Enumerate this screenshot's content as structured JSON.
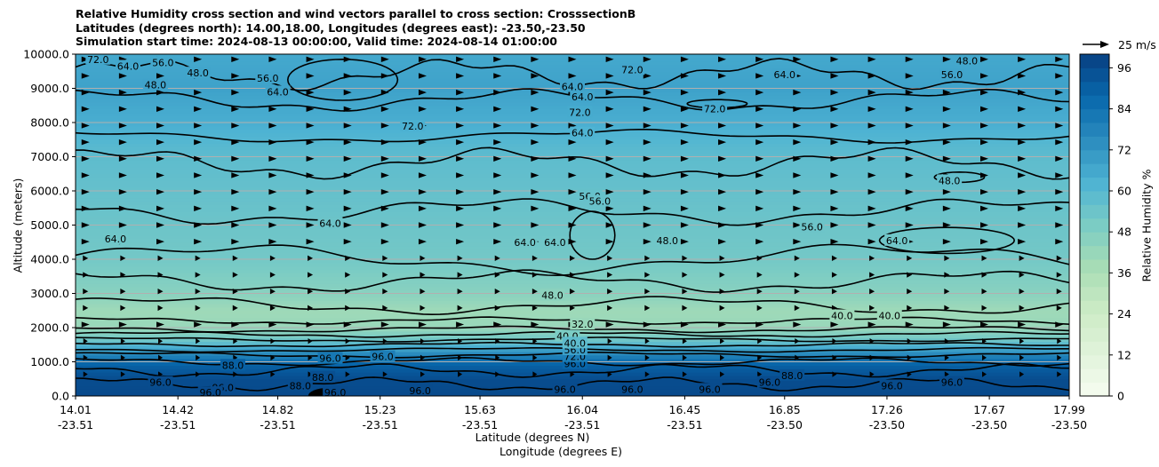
{
  "chart_data": {
    "type": "heatmap",
    "title_lines": [
      "Relative Humidity cross section and wind vectors parallel to cross section: CrosssectionB",
      "Latitudes (degrees north): 14.00,18.00, Longitudes (degrees east): -23.50,-23.50",
      "Simulation start time: 2024-08-13 00:00:00, Valid time: 2024-08-14 01:00:00"
    ],
    "xlabel_lines": [
      "Latitude (degrees N)",
      "Longitude (degrees E)"
    ],
    "ylabel": "Altitude (meters)",
    "x_ticks": [
      {
        "lat": "14.01",
        "lon": "-23.51"
      },
      {
        "lat": "14.42",
        "lon": "-23.51"
      },
      {
        "lat": "14.82",
        "lon": "-23.51"
      },
      {
        "lat": "15.23",
        "lon": "-23.51"
      },
      {
        "lat": "15.63",
        "lon": "-23.51"
      },
      {
        "lat": "16.04",
        "lon": "-23.51"
      },
      {
        "lat": "16.45",
        "lon": "-23.51"
      },
      {
        "lat": "16.85",
        "lon": "-23.50"
      },
      {
        "lat": "17.26",
        "lon": "-23.50"
      },
      {
        "lat": "17.67",
        "lon": "-23.50"
      },
      {
        "lat": "17.99",
        "lon": "-23.50"
      }
    ],
    "y_ticks": [
      "0.0",
      "1000.0",
      "2000.0",
      "3000.0",
      "4000.0",
      "5000.0",
      "6000.0",
      "7000.0",
      "8000.0",
      "9000.0",
      "10000.0"
    ],
    "ylim": [
      0,
      10000
    ],
    "grid": "horizontal",
    "colorbar": {
      "label": "Relative Humidity %",
      "ticks": [
        "0",
        "12",
        "24",
        "36",
        "48",
        "60",
        "72",
        "84",
        "96"
      ],
      "range": [
        0,
        100
      ],
      "colormap": "GnBu",
      "colors": [
        "#f7fcf0",
        "#e0f3db",
        "#ccebc5",
        "#a8ddb5",
        "#7bccc4",
        "#4eb3d3",
        "#2b8cbe",
        "#0868ac",
        "#084081"
      ]
    },
    "quiver_key": {
      "label": "25 m/s"
    },
    "rh_profile": [
      {
        "alt": 0,
        "rh": 97
      },
      {
        "alt": 500,
        "rh": 96
      },
      {
        "alt": 900,
        "rh": 90
      },
      {
        "alt": 1200,
        "rh": 78
      },
      {
        "alt": 1600,
        "rh": 55
      },
      {
        "alt": 2000,
        "rh": 42
      },
      {
        "alt": 2500,
        "rh": 40
      },
      {
        "alt": 3000,
        "rh": 46
      },
      {
        "alt": 4000,
        "rh": 52
      },
      {
        "alt": 5000,
        "rh": 54
      },
      {
        "alt": 6000,
        "rh": 56
      },
      {
        "alt": 7000,
        "rh": 58
      },
      {
        "alt": 8000,
        "rh": 64
      },
      {
        "alt": 9000,
        "rh": 68
      },
      {
        "alt": 10000,
        "rh": 66
      }
    ],
    "contour_labels": [
      {
        "text": "72.0",
        "lat": 14.1,
        "alt": 9850
      },
      {
        "text": "64.0",
        "lat": 14.22,
        "alt": 9650
      },
      {
        "text": "56.0",
        "lat": 14.36,
        "alt": 9750
      },
      {
        "text": "48.0",
        "lat": 14.5,
        "alt": 9450
      },
      {
        "text": "48.0",
        "lat": 14.33,
        "alt": 9100
      },
      {
        "text": "56.0",
        "lat": 14.78,
        "alt": 9300
      },
      {
        "text": "64.0",
        "lat": 14.82,
        "alt": 8900
      },
      {
        "text": "72.0",
        "lat": 15.36,
        "alt": 7900
      },
      {
        "text": "64.0",
        "lat": 15.03,
        "alt": 5050
      },
      {
        "text": "64.0",
        "lat": 14.17,
        "alt": 4600
      },
      {
        "text": "64.0",
        "lat": 16.0,
        "alt": 9050
      },
      {
        "text": "64.0",
        "lat": 16.04,
        "alt": 8750
      },
      {
        "text": "72.0",
        "lat": 16.03,
        "alt": 8300
      },
      {
        "text": "72.0",
        "lat": 16.24,
        "alt": 9550
      },
      {
        "text": "72.0",
        "lat": 16.57,
        "alt": 8400
      },
      {
        "text": "64.0",
        "lat": 16.85,
        "alt": 9400
      },
      {
        "text": "64.0",
        "lat": 16.04,
        "alt": 7700
      },
      {
        "text": "56.0",
        "lat": 16.07,
        "alt": 5850
      },
      {
        "text": "56.0",
        "lat": 16.11,
        "alt": 5700
      },
      {
        "text": "64.0",
        "lat": 15.81,
        "alt": 4500
      },
      {
        "text": "64.0",
        "lat": 15.93,
        "alt": 4500
      },
      {
        "text": "48.0",
        "lat": 16.38,
        "alt": 4550
      },
      {
        "text": "56.0",
        "lat": 16.96,
        "alt": 4950
      },
      {
        "text": "64.0",
        "lat": 17.3,
        "alt": 4550
      },
      {
        "text": "48.0",
        "lat": 17.51,
        "alt": 6300
      },
      {
        "text": "48.0",
        "lat": 17.58,
        "alt": 9800
      },
      {
        "text": "56.0",
        "lat": 17.52,
        "alt": 9400
      },
      {
        "text": "48.0",
        "lat": 15.92,
        "alt": 2950
      },
      {
        "text": "32.0",
        "lat": 16.04,
        "alt": 2100
      },
      {
        "text": "40.0",
        "lat": 15.98,
        "alt": 1750
      },
      {
        "text": "40.0",
        "lat": 17.08,
        "alt": 2350
      },
      {
        "text": "40.0",
        "lat": 17.27,
        "alt": 2350
      },
      {
        "text": "88.0",
        "lat": 14.64,
        "alt": 900
      },
      {
        "text": "96.0",
        "lat": 15.03,
        "alt": 1100
      },
      {
        "text": "96.0",
        "lat": 15.24,
        "alt": 1150
      },
      {
        "text": "96.0",
        "lat": 14.35,
        "alt": 400
      },
      {
        "text": "96.0",
        "lat": 14.6,
        "alt": 250
      },
      {
        "text": "88.0",
        "lat": 14.91,
        "alt": 300
      },
      {
        "text": "96.0",
        "lat": 14.55,
        "alt": 100
      },
      {
        "text": "88.0",
        "lat": 15.0,
        "alt": 550
      },
      {
        "text": "96.0",
        "lat": 15.05,
        "alt": 100
      },
      {
        "text": "96.0",
        "lat": 15.39,
        "alt": 150
      },
      {
        "text": "96.0",
        "lat": 15.97,
        "alt": 200
      },
      {
        "text": "96.0",
        "lat": 16.24,
        "alt": 200
      },
      {
        "text": "96.0",
        "lat": 16.55,
        "alt": 200
      },
      {
        "text": "96.0",
        "lat": 16.79,
        "alt": 400
      },
      {
        "text": "88.0",
        "lat": 16.88,
        "alt": 600
      },
      {
        "text": "96.0",
        "lat": 17.28,
        "alt": 300
      },
      {
        "text": "96.0",
        "lat": 17.52,
        "alt": 400
      },
      {
        "text": "96.0",
        "lat": 16.01,
        "alt": 950
      },
      {
        "text": "72.0",
        "lat": 16.01,
        "alt": 1150
      },
      {
        "text": "56.0",
        "lat": 16.01,
        "alt": 1350
      },
      {
        "text": "40.0",
        "lat": 16.01,
        "alt": 1550
      }
    ]
  }
}
